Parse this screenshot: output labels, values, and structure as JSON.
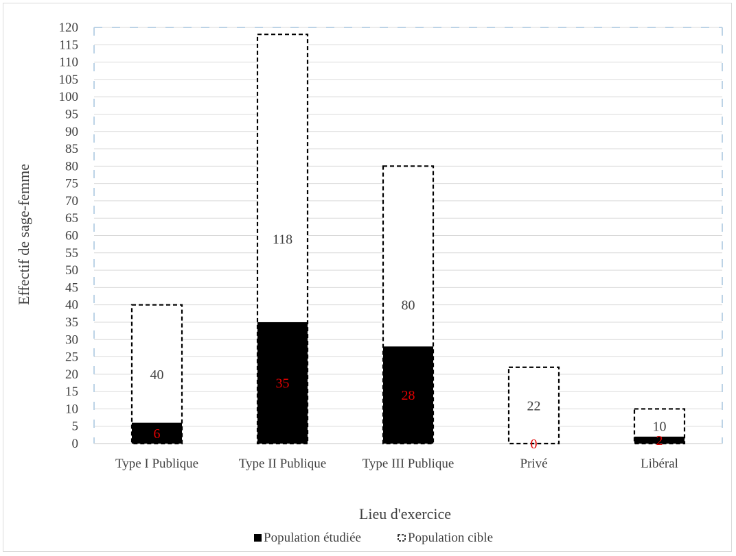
{
  "chart_data": {
    "type": "bar",
    "xlabel": "Lieu d'exercice",
    "ylabel": "Effectif de sage-femme",
    "ylim": [
      0,
      120
    ],
    "ytick_step": 5,
    "grid": true,
    "legend_position": "bottom",
    "categories": [
      "Type I Publique",
      "Type II Publique",
      "Type III Publique",
      "Privé",
      "Libéral"
    ],
    "series": [
      {
        "name": "Population étudiée",
        "values": [
          6,
          35,
          28,
          0,
          2
        ],
        "color": "#000000",
        "label_color": "#e00000"
      },
      {
        "name": "Population cible",
        "values": [
          40,
          118,
          80,
          22,
          10
        ],
        "color": "#ffffff",
        "label_color": "#404040",
        "border": "dashed"
      }
    ]
  }
}
